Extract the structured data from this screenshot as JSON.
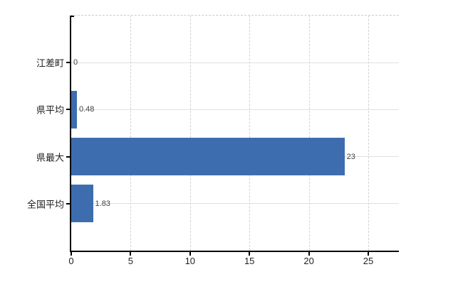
{
  "chart_data": {
    "type": "bar",
    "orientation": "horizontal",
    "title": "",
    "xlabel": "",
    "ylabel": "",
    "categories": [
      "江差町",
      "県平均",
      "県最大",
      "全国平均"
    ],
    "values": [
      0,
      0.48,
      23,
      1.83
    ],
    "value_labels": [
      "0",
      "0.48",
      "23",
      "1.83"
    ],
    "x_ticks": [
      0,
      5,
      10,
      15,
      20,
      25
    ],
    "x_tick_labels": [
      "0",
      "5",
      "10",
      "15",
      "20",
      "25"
    ],
    "xlim": [
      0,
      27.6
    ],
    "legend": "none",
    "grid": {
      "vertical": "dashed",
      "horizontal": "solid",
      "top_border": "dashed"
    },
    "colors": {
      "bar": "#3d6dae",
      "h_grid": "#dde3dd",
      "v_grid": "#d4d0d4",
      "top_border": "#cfcbcf",
      "axis": "#000000",
      "category_text": "#1f1f1f",
      "value_text": "#3f3f3f",
      "tick_text": "#1f1f1f",
      "background": "#ffffff"
    }
  }
}
